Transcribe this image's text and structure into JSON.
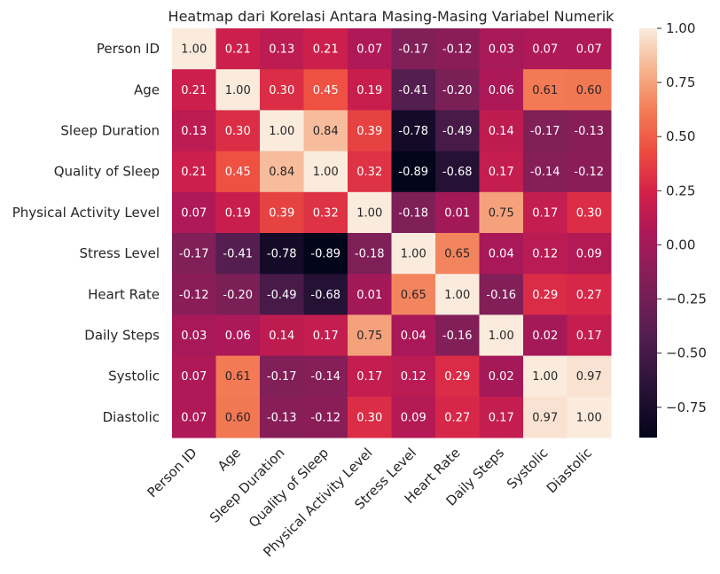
{
  "chart_data": {
    "type": "heatmap",
    "title": "Heatmap dari Korelasi Antara Masing-Masing Variabel Numerik",
    "row_labels": [
      "Person ID",
      "Age",
      "Sleep Duration",
      "Quality of Sleep",
      "Physical Activity Level",
      "Stress Level",
      "Heart Rate",
      "Daily Steps",
      "Systolic",
      "Diastolic"
    ],
    "col_labels": [
      "Person ID",
      "Age",
      "Sleep Duration",
      "Quality of Sleep",
      "Physical Activity Level",
      "Stress Level",
      "Heart Rate",
      "Daily Steps",
      "Systolic",
      "Diastolic"
    ],
    "values": [
      [
        1.0,
        0.21,
        0.13,
        0.21,
        0.07,
        -0.17,
        -0.12,
        0.03,
        0.07,
        0.07
      ],
      [
        0.21,
        1.0,
        0.3,
        0.45,
        0.19,
        -0.41,
        -0.2,
        0.06,
        0.61,
        0.6
      ],
      [
        0.13,
        0.3,
        1.0,
        0.84,
        0.39,
        -0.78,
        -0.49,
        0.14,
        -0.17,
        -0.13
      ],
      [
        0.21,
        0.45,
        0.84,
        1.0,
        0.32,
        -0.89,
        -0.68,
        0.17,
        -0.14,
        -0.12
      ],
      [
        0.07,
        0.19,
        0.39,
        0.32,
        1.0,
        -0.18,
        0.01,
        0.75,
        0.17,
        0.3
      ],
      [
        -0.17,
        -0.41,
        -0.78,
        -0.89,
        -0.18,
        1.0,
        0.65,
        0.04,
        0.12,
        0.09
      ],
      [
        -0.12,
        -0.2,
        -0.49,
        -0.68,
        0.01,
        0.65,
        1.0,
        -0.16,
        0.29,
        0.27
      ],
      [
        0.03,
        0.06,
        0.14,
        0.17,
        0.75,
        0.04,
        -0.16,
        1.0,
        0.02,
        0.17
      ],
      [
        0.07,
        0.61,
        -0.17,
        -0.14,
        0.17,
        0.12,
        0.29,
        0.02,
        1.0,
        0.97
      ],
      [
        0.07,
        0.6,
        -0.13,
        -0.12,
        0.3,
        0.09,
        0.27,
        0.17,
        0.97,
        1.0
      ]
    ],
    "value_format": "0.00",
    "colormap": "rocket",
    "color_range": [
      -0.89,
      1.0
    ],
    "colorbar_ticks": [
      1.0,
      0.75,
      0.5,
      0.25,
      0.0,
      -0.25,
      -0.5,
      -0.75
    ],
    "colorbar_tick_labels": [
      "1.00",
      "0.75",
      "0.50",
      "0.25",
      "0.00",
      "−0.25",
      "−0.50",
      "−0.75"
    ],
    "colorbar_placement": "right",
    "annotation_colors": {
      "light": "#ffffff",
      "dark": "#262626"
    },
    "xtick_rotation_deg": 45
  }
}
